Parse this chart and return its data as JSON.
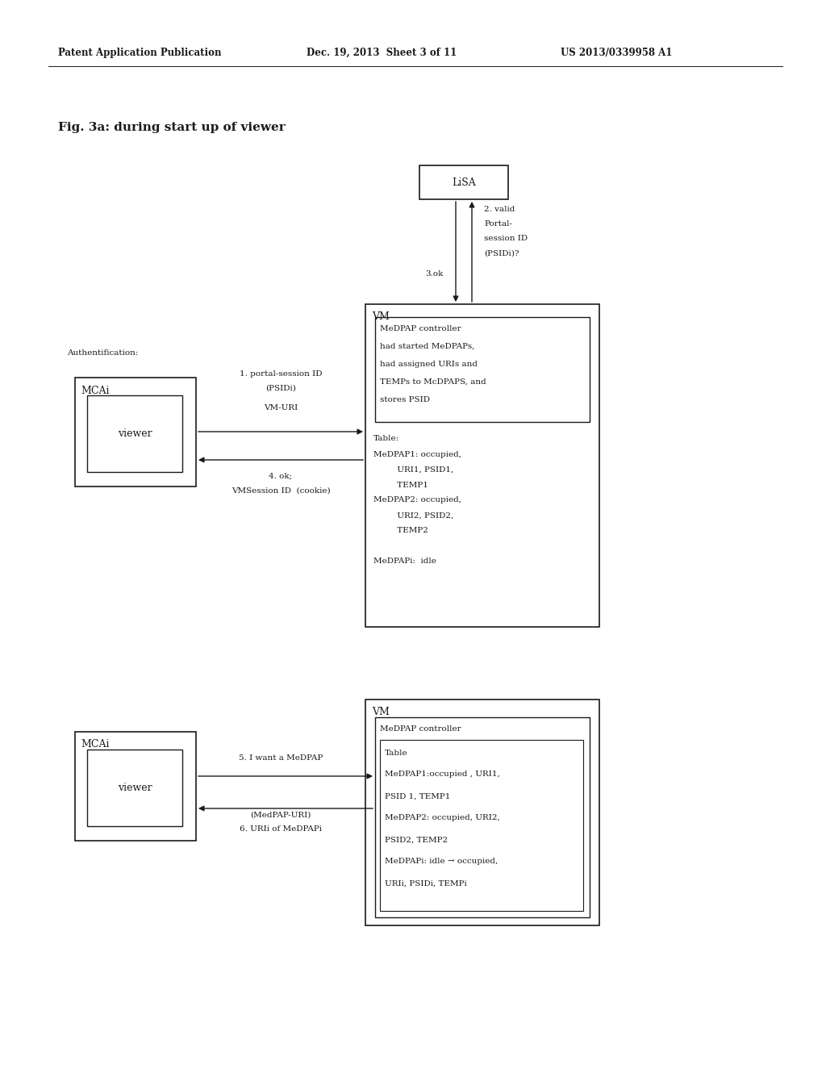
{
  "header_left": "Patent Application Publication",
  "header_mid": "Dec. 19, 2013  Sheet 3 of 11",
  "header_right": "US 2013/0339958 A1",
  "fig_label": "Fig. 3a: during start up of viewer",
  "bg_color": "#ffffff",
  "text_color": "#1a1a1a"
}
